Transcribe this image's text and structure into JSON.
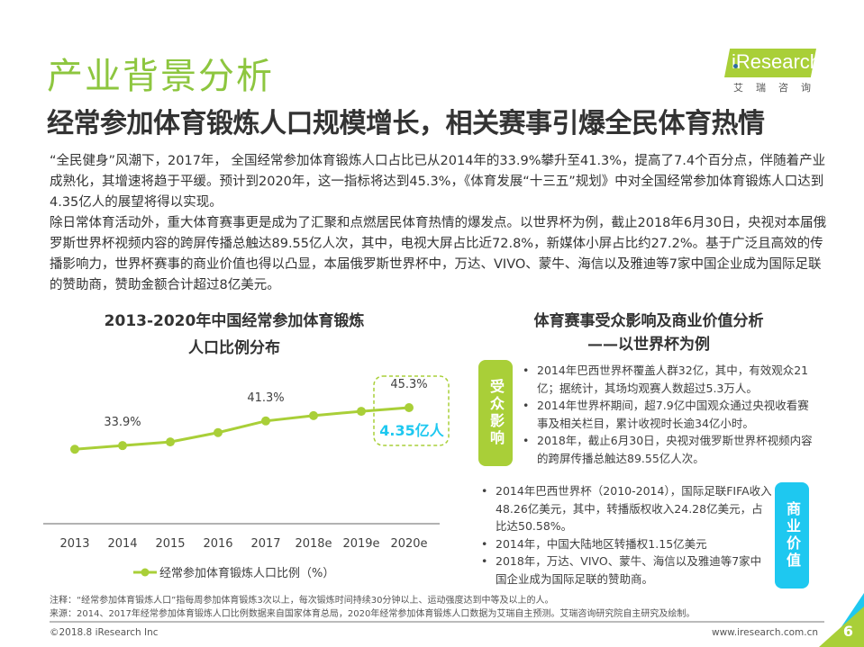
{
  "header": {
    "title": "产业背景分析",
    "subtitle": "经常参加体育锻炼人口规模增长，相关赛事引爆全民体育热情"
  },
  "logo": {
    "brand": "iResearch",
    "cn": "艾瑞咨询"
  },
  "intro": [
    "“全民健身”风潮下，2017年， 全国经常参加体育锻炼人口占比已从2014年的33.9%攀升至41.3%，提高了7.4个百分点，伴随着产业成熟化，其增速将趋于平缓。预计到2020年，这一指标将达到45.3%，《体育发展“十三五”规划》中对全国经常参加体育锻炼人口达到4.35亿人的展望将得以实现。",
    "除日常体育活动外，重大体育赛事更是成为了汇聚和点燃居民体育热情的爆发点。以世界杯为例，截止2018年6月30日，央视对本届俄罗斯世界杯视频内容的跨屏传播总触达89.55亿人次，其中，电视大屏占比近72.8%，新媒体小屏占比约27.2%。基于广泛且高效的传播影响力，世界杯赛事的商业价值也得以凸显，本届俄罗斯世界杯中，万达、VIVO、蒙牛、海信以及雅迪等7家中国企业成为国际足联的赞助商，赞助金额合计超过8亿美元。"
  ],
  "chart_data": {
    "type": "line",
    "title": "2013-2020年中国经常参加体育锻炼人口比例分布",
    "categories": [
      "2013",
      "2014",
      "2015",
      "2016",
      "2017",
      "2018e",
      "2019e",
      "2020e"
    ],
    "series": [
      {
        "name": "经常参加体育锻炼人口比例（%）",
        "values": [
          32.8,
          33.9,
          35.0,
          37.8,
          41.3,
          42.9,
          44.2,
          45.3
        ]
      }
    ],
    "data_labels": {
      "1": "33.9%",
      "4": "41.3%",
      "7": "45.3%"
    },
    "annotation": "4.35亿人",
    "ylim": [
      10,
      60
    ],
    "grid": false,
    "legend": "bottom",
    "line_color": "#a9cf38",
    "annotation_color": "#1ec8f0"
  },
  "right": {
    "title_line1": "体育赛事受众影响及商业价值分析",
    "title_line2": "——以世界杯为例",
    "audience": {
      "tag": "受众影响",
      "color": "#a9cf38",
      "items": [
        "2014年巴西世界杯覆盖人群32亿，其中，有效观众21亿；据统计，其场均观赛人数超过5.3万人。",
        "2014年世界杯期间，超7.9亿中国观众通过央视收看赛事及相关栏目，累计收视时长逾34亿小时。",
        "2018年，截止6月30日，央视对俄罗斯世界杯视频内容的跨屏传播总触达89.55亿人次。"
      ]
    },
    "business": {
      "tag": "商业价值",
      "color": "#1ec8f0",
      "items": [
        "2014年巴西世界杯（2010-2014），国际足联FIFA收入48.26亿美元，其中，转播版权收入24.28亿美元，占比达50.58%。",
        "2014年，中国大陆地区转播权1.15亿美元",
        "2018年，万达、VIVO、蒙牛、海信以及雅迪等7家中国企业成为国际足联的赞助商。"
      ]
    }
  },
  "footer": {
    "note": "注释：“经常参加体育锻炼人口”指每周参加体育锻炼3次以上，每次锻炼时间持续30分钟以上、运动强度达到中等及以上的人。",
    "source": "来源：2014、2017年经常参加体育锻炼人口比例数据来自国家体育总局，2020年经常参加体育锻炼人口数据为艾瑞自主预测。艾瑞咨询研究院自主研究及绘制。",
    "copyright": "©2018.8 iResearch Inc",
    "website": "www.iresearch.com.cn",
    "page": "6"
  }
}
